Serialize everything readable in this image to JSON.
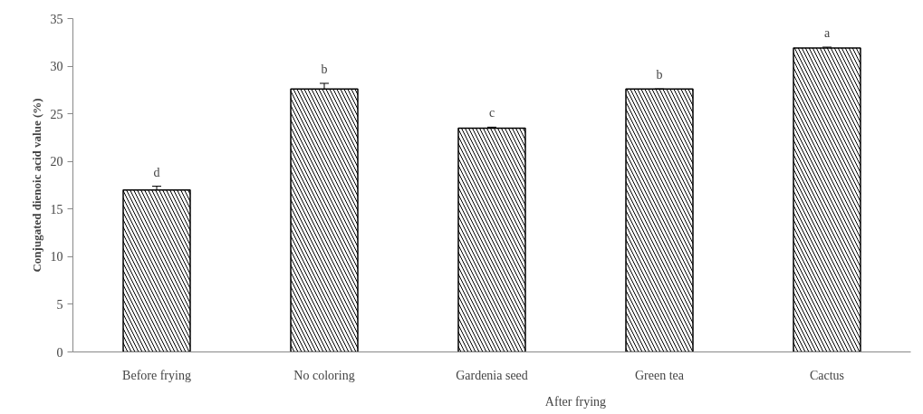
{
  "chart_data": {
    "type": "bar",
    "ylabel": "Conjugated dienoic acid value (%)",
    "categories": [
      "Before frying",
      "No coloring",
      "Gardenia seed",
      "Green tea",
      "Cactus"
    ],
    "values": [
      17.0,
      27.6,
      23.5,
      27.6,
      31.9
    ],
    "errors": [
      0.4,
      0.6,
      0.1,
      0,
      0.1
    ],
    "color": "#000000",
    "ylim": [
      0,
      35
    ],
    "yticks": [
      0,
      5,
      10,
      15,
      20,
      25,
      30,
      35
    ],
    "grid": false,
    "annotations": [
      {
        "text": "d",
        "x": "Before frying",
        "y": 17.0
      },
      {
        "text": "b",
        "x": "No coloring",
        "y": 27.6
      },
      {
        "text": "c",
        "x": "Gardenia seed",
        "y": 23.5
      },
      {
        "text": "b",
        "x": "Green tea",
        "y": 27.6
      },
      {
        "text": "a",
        "x": "Cactus",
        "y": 31.9
      },
      "After frying"
    ]
  }
}
